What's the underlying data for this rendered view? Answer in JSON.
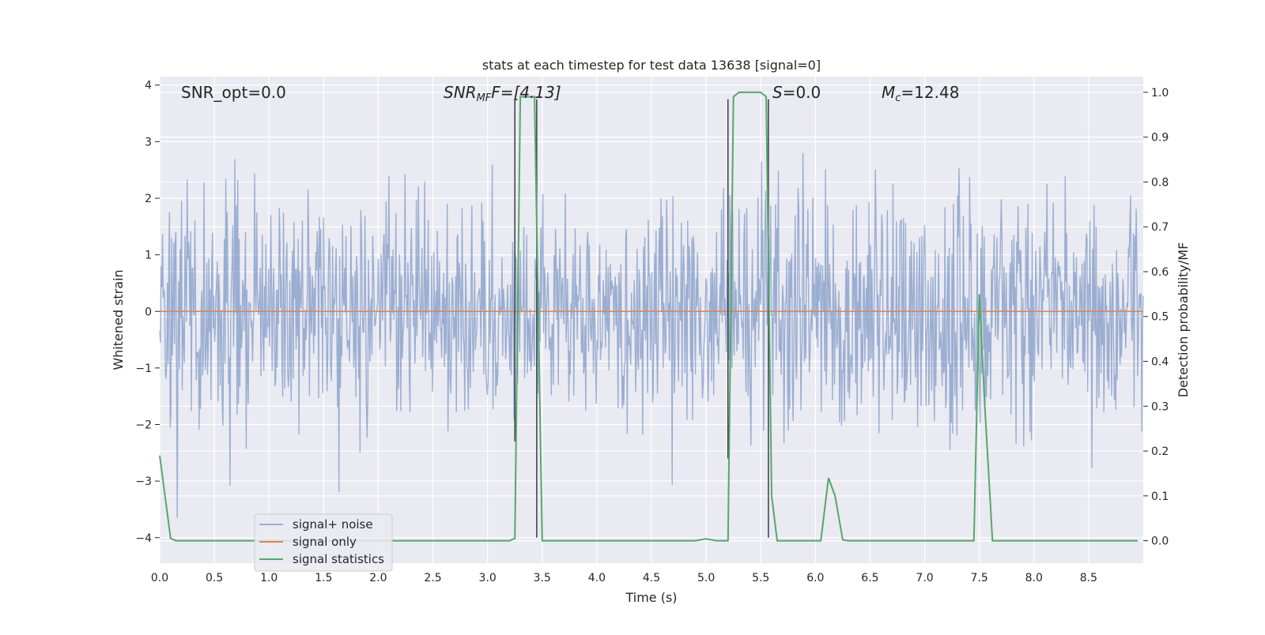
{
  "chart_data": {
    "type": "line",
    "title": "stats at each timestep for test data 13638 [signal=0]",
    "xlabel": "Time (s)",
    "ylabel": "Whitened strain",
    "ylabel_right": "Detection probability/MF",
    "xlim": [
      0,
      9.0
    ],
    "ylim": [
      -4.45,
      4.15
    ],
    "ylim_right": [
      -0.05,
      1.035
    ],
    "grid": true,
    "legend_position": "lower-left",
    "x_ticks": [
      "0.0",
      "0.5",
      "1.0",
      "1.5",
      "2.0",
      "2.5",
      "3.0",
      "3.5",
      "4.0",
      "4.5",
      "5.0",
      "5.5",
      "6.0",
      "6.5",
      "7.0",
      "7.5",
      "8.0",
      "8.5"
    ],
    "y_ticks": [
      "4",
      "3",
      "2",
      "1",
      "0",
      "−1",
      "−2",
      "−3",
      "−4"
    ],
    "y_ticks_right": [
      "1.0",
      "0.9",
      "0.8",
      "0.7",
      "0.6",
      "0.5",
      "0.4",
      "0.3",
      "0.2",
      "0.1",
      "0.0"
    ],
    "annotations": {
      "snr_opt": "SNR_opt=0.0",
      "snr_mf_main": "SNR",
      "snr_mf_sub": "MF",
      "snr_mf_rest": "F=[4.13]",
      "s_main": "S",
      "s_rest": "=0.0",
      "mc_main": "M",
      "mc_sub": "c",
      "mc_rest": "=12.48"
    },
    "series": [
      {
        "name": "signal+ noise",
        "color": "#4c72b0",
        "opacity": 0.5,
        "description_seed": 13638,
        "sigma": 1.05,
        "samples": 1400
      },
      {
        "name": "signal only",
        "color": "#dd8452",
        "x": [
          0,
          9.0
        ],
        "y": [
          0,
          0
        ]
      },
      {
        "name": "signal statistics",
        "color": "#55a868",
        "axis": "right",
        "x": [
          0.0,
          0.1,
          0.15,
          0.5,
          1.0,
          1.5,
          2.0,
          2.5,
          3.0,
          3.2,
          3.25,
          3.3,
          3.4,
          3.43,
          3.5,
          3.55,
          4.0,
          4.5,
          4.9,
          5.0,
          5.05,
          5.1,
          5.2,
          5.25,
          5.3,
          5.5,
          5.55,
          5.6,
          5.65,
          5.7,
          5.75,
          6.05,
          6.12,
          6.18,
          6.25,
          6.3,
          7.0,
          7.45,
          7.5,
          7.55,
          7.62,
          8.0,
          8.5,
          8.95
        ],
        "y": [
          0.19,
          0.005,
          0.0,
          0.0,
          0.0,
          0.0,
          0.0,
          0.0,
          0.0,
          0.0,
          0.005,
          0.99,
          0.99,
          0.99,
          0.0,
          0.0,
          0.0,
          0.0,
          0.0,
          0.004,
          0.002,
          0.0,
          0.0,
          0.99,
          1.0,
          1.0,
          0.99,
          0.1,
          0.0,
          0.0,
          0.0,
          0.0,
          0.14,
          0.1,
          0.002,
          0.0,
          0.0,
          0.0,
          0.55,
          0.3,
          0.0,
          0.0,
          0.0,
          0.0
        ]
      }
    ],
    "vertical_markers": [
      {
        "x": 3.25,
        "y_top": 3.75,
        "y_bottom": -2.3
      },
      {
        "x": 3.45,
        "y_top": 3.75,
        "y_bottom": -4.0
      },
      {
        "x": 5.2,
        "y_top": 3.75,
        "y_bottom": -2.6
      },
      {
        "x": 5.57,
        "y_top": 3.75,
        "y_bottom": -4.0
      }
    ],
    "colors": {
      "axes_background": "#eaeaf2",
      "grid": "#ffffff",
      "marker_line": "#3b3b4f"
    }
  }
}
